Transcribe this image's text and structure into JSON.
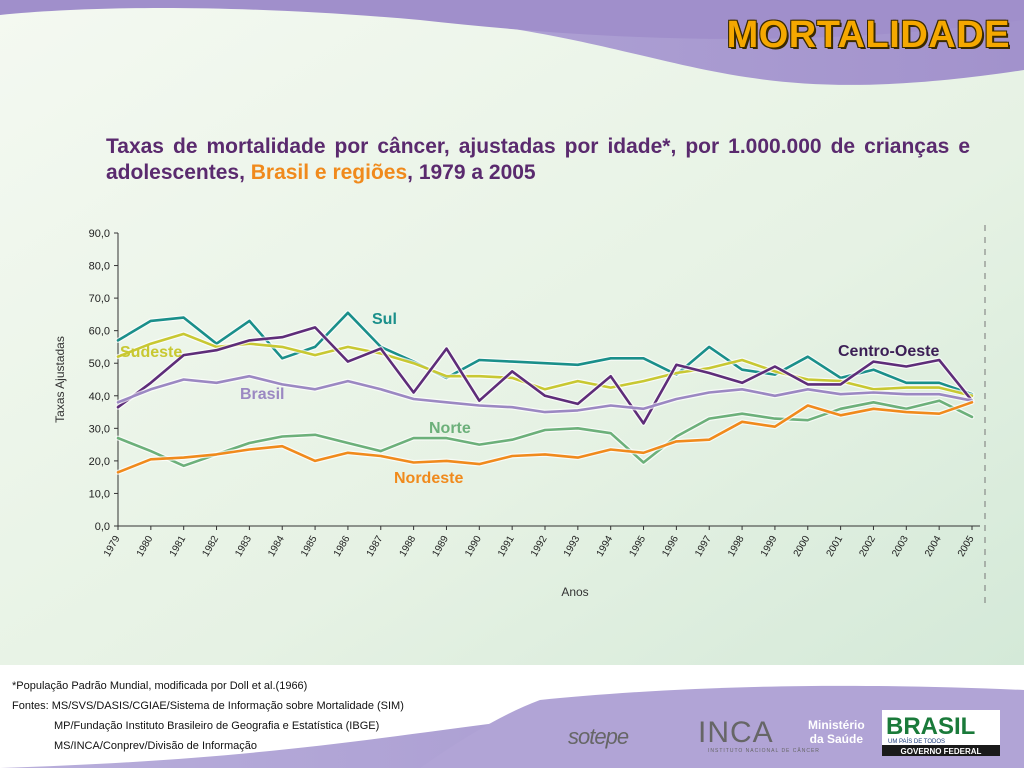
{
  "header": {
    "title": "MORTALIDADE",
    "subtitle_part1": "Taxas de mortalidade por câncer, ajustadas por idade*, por 1.000.000 de crianças e adolescentes, ",
    "subtitle_highlight": "Brasil e regiões",
    "subtitle_part2": ", 1979 a 2005"
  },
  "chart_data": {
    "type": "line",
    "title": "",
    "xlabel": "Anos",
    "ylabel": "Taxas Ajustadas",
    "ylim": [
      0,
      90
    ],
    "yticks": [
      "0,0",
      "10,0",
      "20,0",
      "30,0",
      "40,0",
      "50,0",
      "60,0",
      "70,0",
      "80,0",
      "90,0"
    ],
    "categories": [
      "1979",
      "1980",
      "1981",
      "1982",
      "1983",
      "1984",
      "1985",
      "1986",
      "1987",
      "1988",
      "1989",
      "1990",
      "1991",
      "1992",
      "1993",
      "1994",
      "1995",
      "1996",
      "1997",
      "1998",
      "1999",
      "2000",
      "2001",
      "2002",
      "2003",
      "2004",
      "2005"
    ],
    "grid": false,
    "series": [
      {
        "name": "Sul",
        "color": "#1a8f8a",
        "values": [
          57,
          63,
          64,
          56,
          63,
          51.5,
          55,
          65.5,
          55,
          50.5,
          45.5,
          51,
          50.5,
          50,
          49.5,
          51.5,
          51.5,
          46.5,
          55,
          48,
          46.5,
          52,
          45.5,
          48,
          44,
          44,
          40.5
        ]
      },
      {
        "name": "Sudeste",
        "color": "#c8c832",
        "values": [
          52,
          56,
          59,
          55,
          56,
          55,
          52.5,
          55,
          53,
          50,
          46,
          46,
          45.5,
          42,
          44.5,
          42.5,
          44.5,
          47,
          48.5,
          51,
          47.5,
          45,
          44.5,
          42,
          42.5,
          42.5,
          40
        ]
      },
      {
        "name": "Centro-Oeste",
        "color": "#5e2d79",
        "values": [
          36.5,
          44,
          52.5,
          54,
          57,
          58,
          61,
          50.5,
          54.5,
          41,
          54.5,
          38.5,
          47.5,
          40,
          37.5,
          46,
          31.5,
          49.5,
          47,
          44,
          49,
          43.5,
          43.5,
          50.5,
          49,
          51,
          38.5
        ]
      },
      {
        "name": "Brasil",
        "color": "#9b88c2",
        "values": [
          38,
          42,
          45,
          44,
          46,
          43.5,
          42,
          44.5,
          42,
          39,
          38,
          37,
          36.5,
          35,
          35.5,
          37,
          36,
          39,
          41,
          42,
          40,
          42,
          40.5,
          41,
          40.5,
          40.5,
          38.5
        ]
      },
      {
        "name": "Norte",
        "color": "#6cb07a",
        "values": [
          27,
          23,
          18.5,
          22,
          25.5,
          27.5,
          28,
          25.5,
          23,
          27,
          27,
          25,
          26.5,
          29.5,
          30,
          28.5,
          19.5,
          27.5,
          33,
          34.5,
          33,
          32.5,
          36,
          38,
          36,
          38.5,
          33.5
        ]
      },
      {
        "name": "Nordeste",
        "color": "#f08a1c",
        "values": [
          16.5,
          20.5,
          21,
          22,
          23.5,
          24.5,
          20,
          22.5,
          21.5,
          19.5,
          20,
          19,
          21.5,
          22,
          21,
          23.5,
          22.5,
          26,
          26.5,
          32,
          30.5,
          37,
          34,
          36,
          35,
          34.5,
          38
        ]
      }
    ]
  },
  "footnotes": [
    "*População Padrão Mundial, modificada por Doll et al.(1966)",
    "Fontes: MS/SVS/DASIS/CGIAE/Sistema de Informação sobre Mortalidade (SIM)",
    "MP/Fundação Instituto Brasileiro de Geografia e Estatística (IBGE)",
    "MS/INCA/Conprev/Divisão de Informação"
  ],
  "logos": {
    "sotepe": "sotepe",
    "inca": "INCA",
    "inca_sub": "INSTITUTO NACIONAL DE CÂNCER",
    "ministerio_line1": "Ministério",
    "ministerio_line2": "da Saúde",
    "brasil": "BRASIL",
    "brasil_tagline": "UM PAÍS DE TODOS",
    "governo": "GOVERNO FEDERAL"
  },
  "colors": {
    "title": "#f5a800",
    "subtitle": "#5a2a6e",
    "highlight": "#f08a1c",
    "frame": "#a99bd0"
  }
}
